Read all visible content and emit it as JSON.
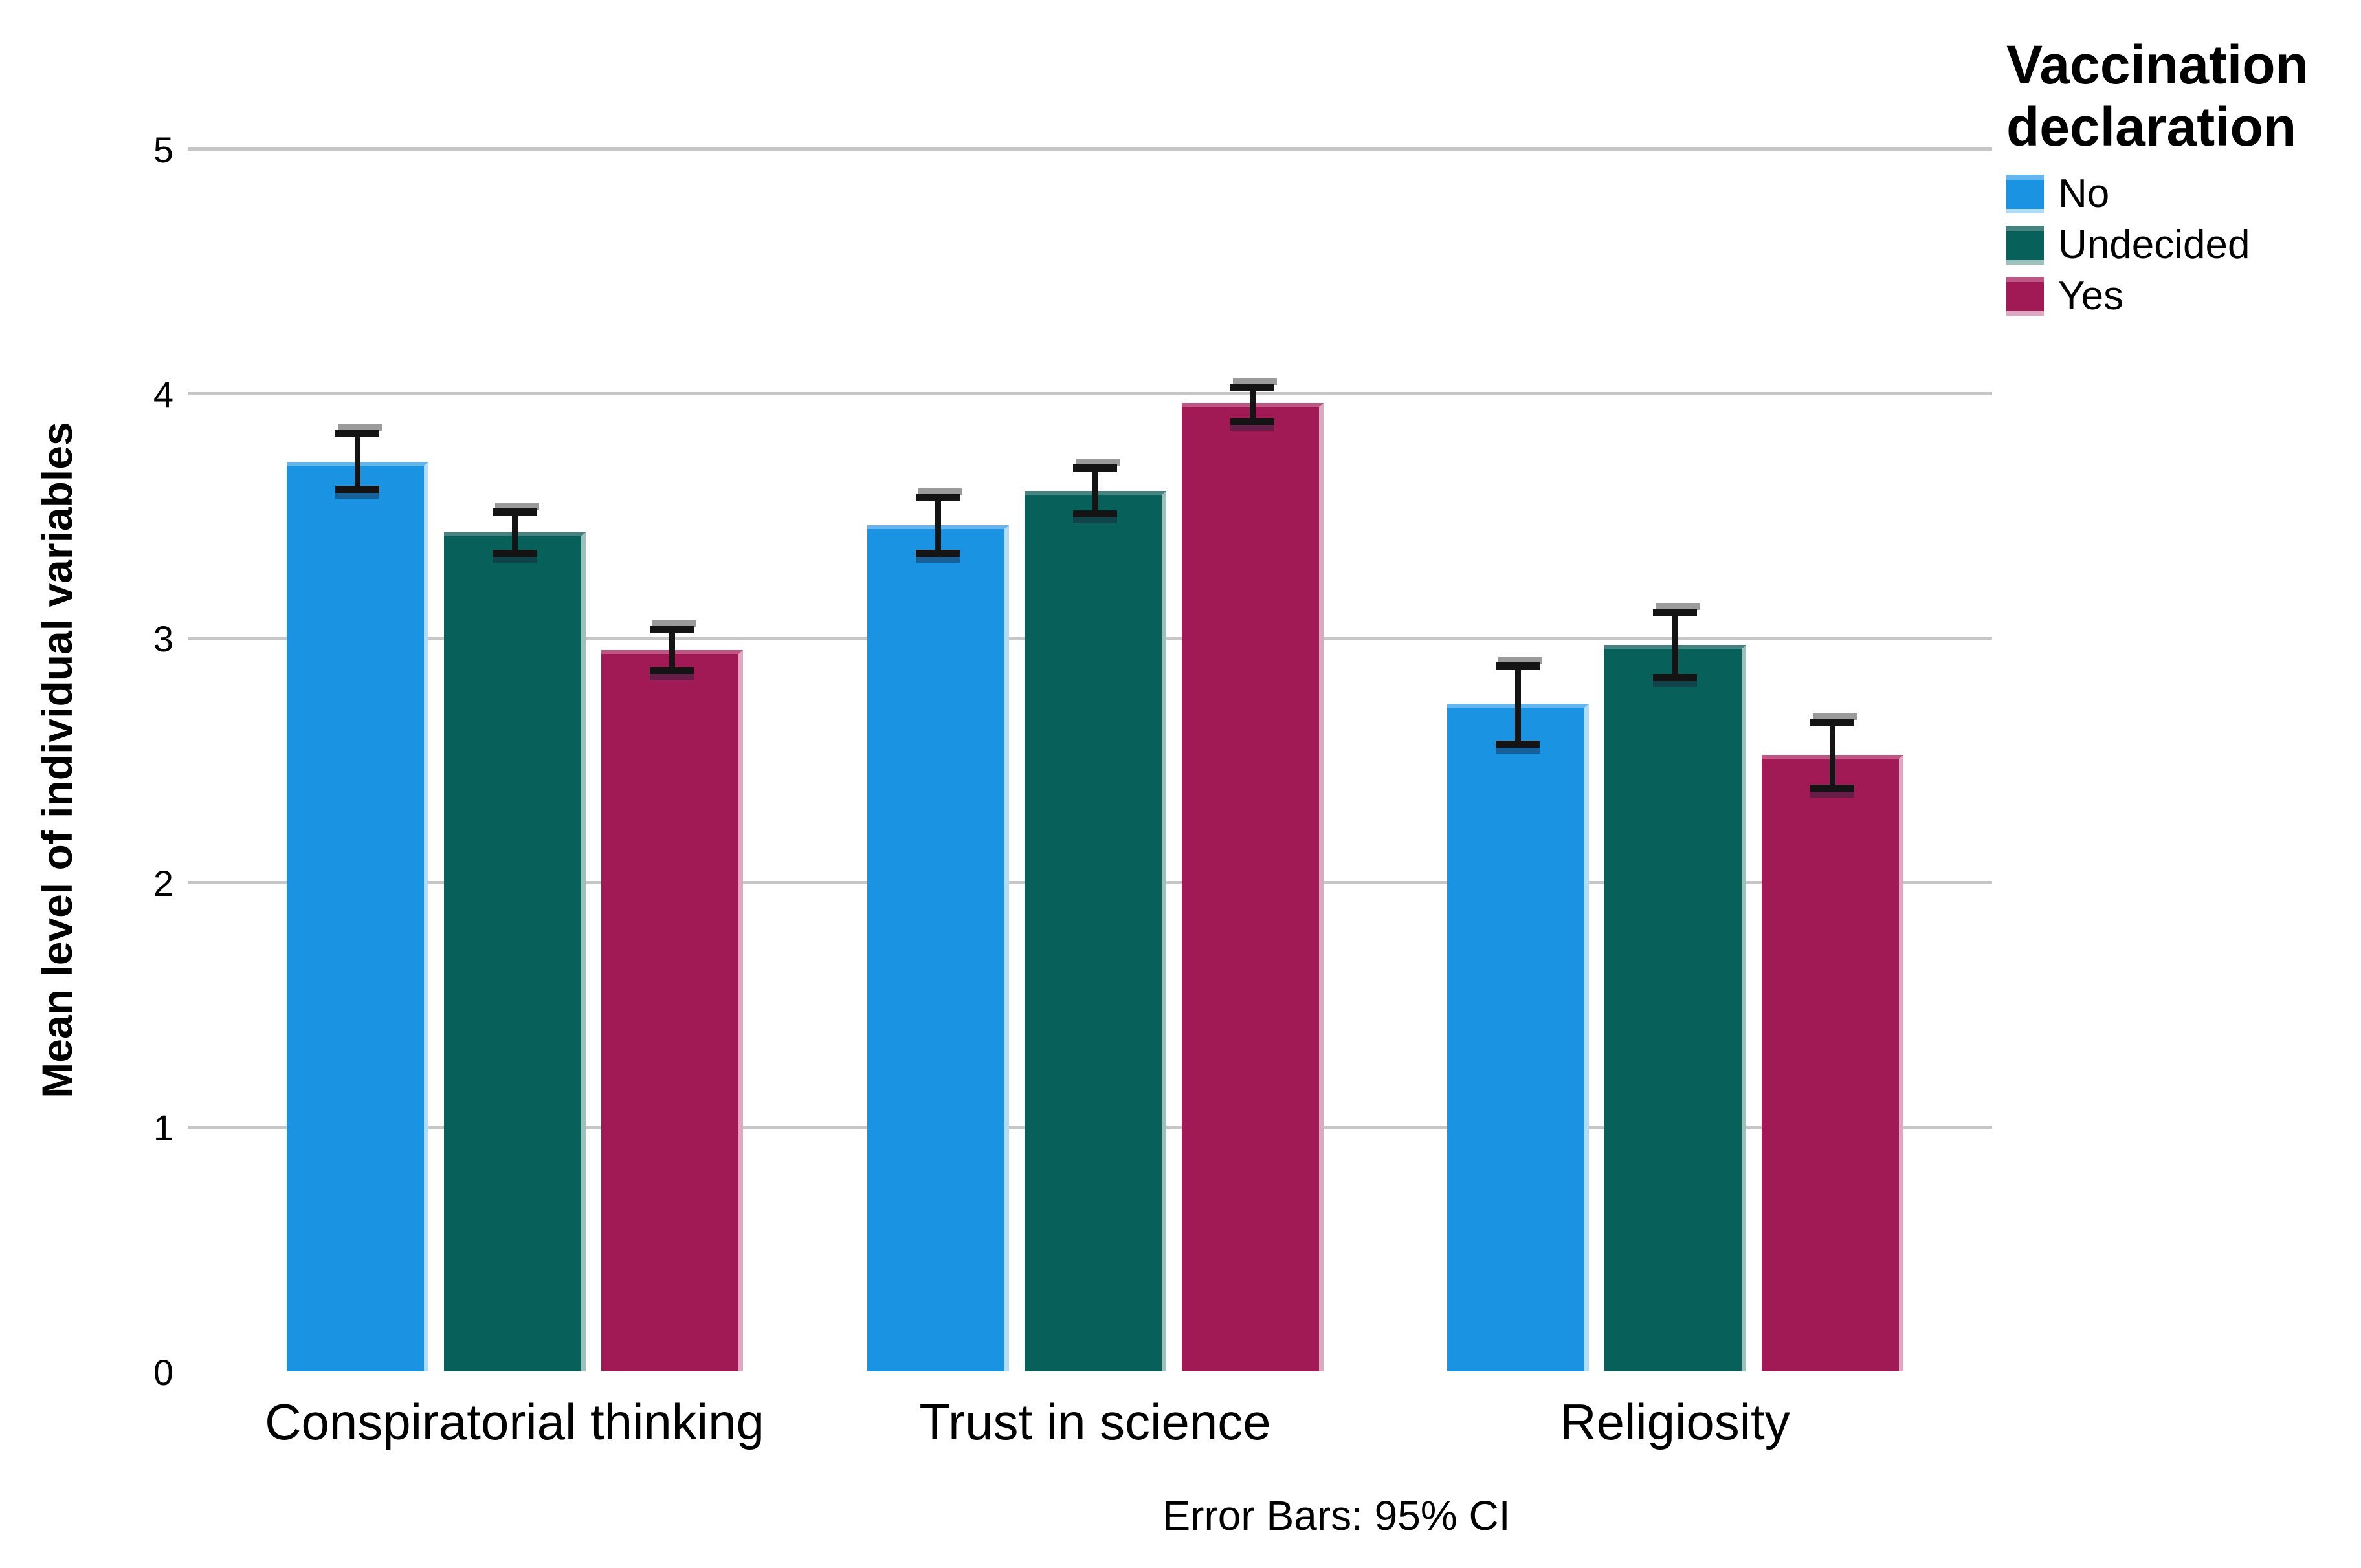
{
  "figure": {
    "background": "#FFFFFF",
    "caption": "Error Bars: 95% CI",
    "y_axis_title": "Mean level of individual variables",
    "colors": {
      "gridline": "#C6C6C6",
      "y_axis_line": "#595959",
      "x_axis_line": "#404040",
      "error_bar": "#141414",
      "error_bar_shadow": "#9B9B9B",
      "text": "#000000"
    },
    "legend": {
      "title": "Vaccination declaration",
      "title_lines": [
        "Vaccination",
        "declaration"
      ],
      "items": [
        {
          "label": "No",
          "color": "#1B93E3",
          "edge_top": "#66B5EC",
          "edge_right": "#B0DCF8"
        },
        {
          "label": "Undecided",
          "color": "#07605A",
          "edge_top": "#47837E",
          "edge_right": "#9CC1BD"
        },
        {
          "label": "Yes",
          "color": "#A21A55",
          "edge_top": "#BE5684",
          "edge_right": "#DCA8C2"
        }
      ]
    }
  },
  "chart_data": {
    "type": "bar",
    "title": "",
    "xlabel": "",
    "ylabel": "Mean level of individual variables",
    "categories": [
      "Conspiratorial thinking",
      "Trust in science",
      "Religiosity"
    ],
    "series": [
      {
        "name": "No",
        "color": "#1B93E3",
        "edge_top": "#66B5EC",
        "edge_right": "#B0DCF8",
        "values": [
          3.72,
          3.46,
          2.73
        ],
        "ci_lower": [
          3.61,
          3.35,
          2.57
        ],
        "ci_upper": [
          3.83,
          3.57,
          2.88
        ]
      },
      {
        "name": "Undecided",
        "color": "#07605A",
        "edge_top": "#47837E",
        "edge_right": "#9CC1BD",
        "values": [
          3.43,
          3.6,
          2.97
        ],
        "ci_lower": [
          3.35,
          3.51,
          2.84
        ],
        "ci_upper": [
          3.51,
          3.69,
          3.1
        ]
      },
      {
        "name": "Yes",
        "color": "#A21A55",
        "edge_top": "#BE5684",
        "edge_right": "#DCA8C2",
        "values": [
          2.95,
          3.96,
          2.52
        ],
        "ci_lower": [
          2.87,
          3.89,
          2.39
        ],
        "ci_upper": [
          3.03,
          4.02,
          2.65
        ]
      }
    ],
    "yticks": [
      0,
      1,
      2,
      3,
      4,
      5
    ],
    "ylim": [
      0,
      5.5
    ],
    "grid": true,
    "legend_title": "Vaccination declaration",
    "legend_position": "top-right",
    "error_bars": "95% CI"
  }
}
